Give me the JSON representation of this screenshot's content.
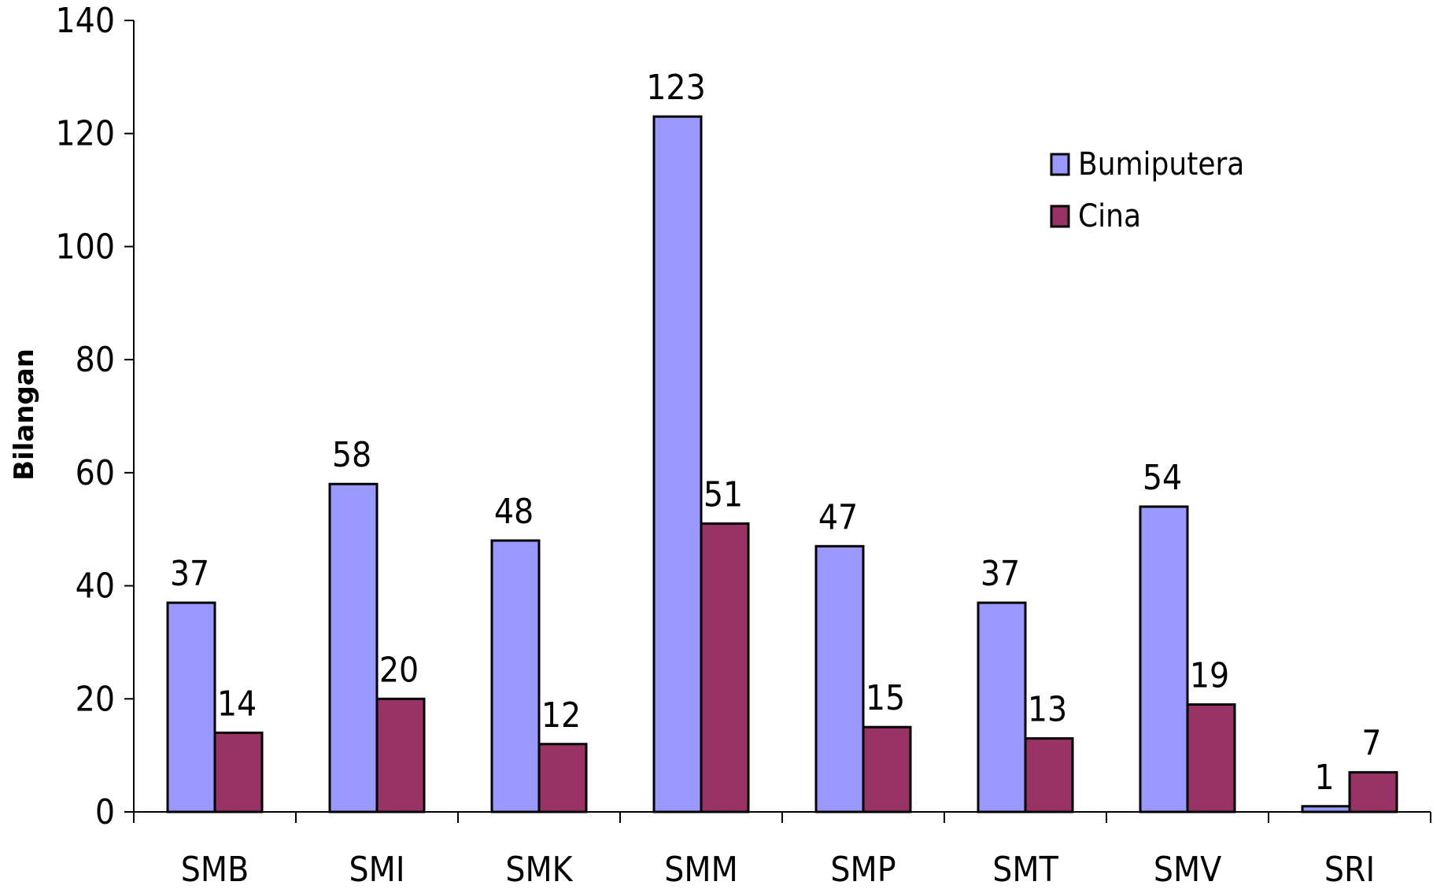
{
  "chart_data": {
    "type": "bar",
    "categories": [
      "SMB",
      "SMI",
      "SMK",
      "SMM",
      "SMP",
      "SMT",
      "SMV",
      "SRI"
    ],
    "series": [
      {
        "name": "Bumiputera",
        "color": "#9999FF",
        "values": [
          37,
          58,
          48,
          123,
          47,
          37,
          54,
          1
        ]
      },
      {
        "name": "Cina",
        "color": "#993366",
        "values": [
          14,
          20,
          12,
          51,
          15,
          13,
          19,
          7
        ]
      }
    ],
    "title": "",
    "xlabel": "",
    "ylabel": "Bilangan",
    "ylim": [
      0,
      140
    ],
    "yticks": [
      0,
      20,
      40,
      60,
      80,
      100,
      120,
      140
    ],
    "grid": false,
    "legend_position": "top-right",
    "data_labels": true
  }
}
